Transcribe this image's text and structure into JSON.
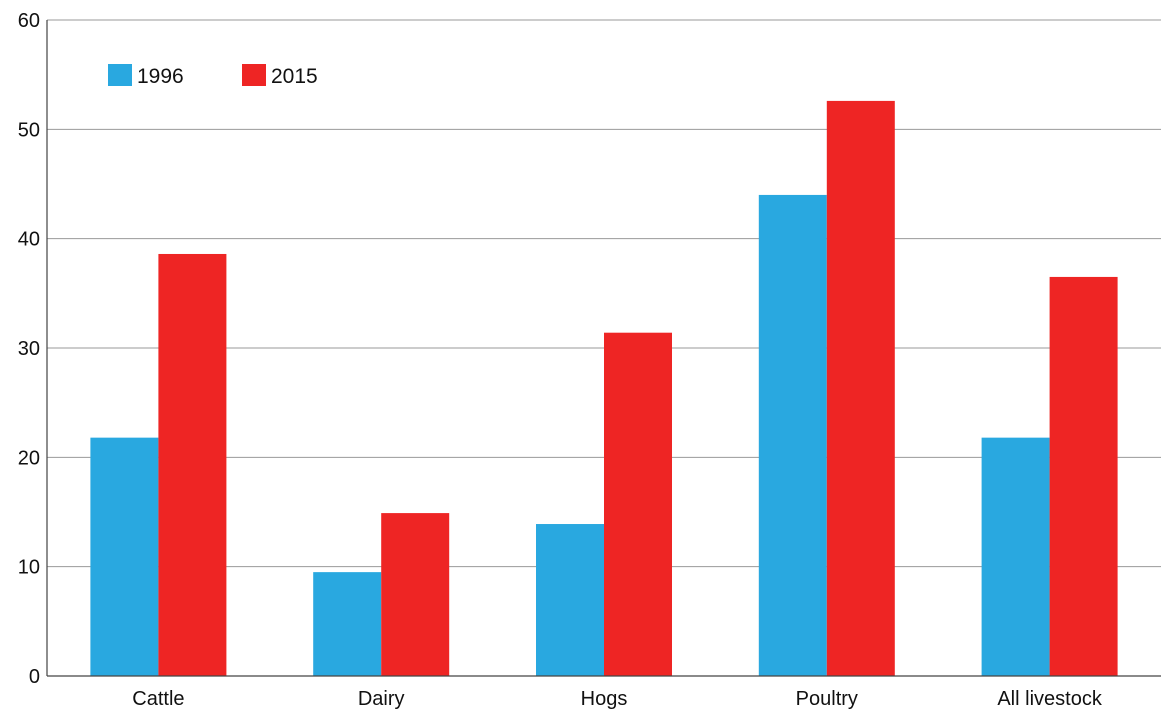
{
  "chart_data": {
    "type": "bar",
    "title": "",
    "xlabel": "",
    "ylabel": "",
    "categories": [
      "Cattle",
      "Dairy",
      "Hogs",
      "Poultry",
      "All livestock"
    ],
    "series": [
      {
        "name": "1996",
        "color": "#29a8e0",
        "values": [
          21.8,
          9.5,
          13.9,
          44.0,
          21.8
        ]
      },
      {
        "name": "2015",
        "color": "#ee2524",
        "values": [
          38.6,
          14.9,
          31.4,
          52.6,
          36.5
        ]
      }
    ],
    "ylim": [
      0,
      60
    ],
    "yticks": [
      "0",
      "10",
      "20",
      "30",
      "40",
      "50",
      "60"
    ],
    "grid": true,
    "legend_position": "top-left"
  }
}
